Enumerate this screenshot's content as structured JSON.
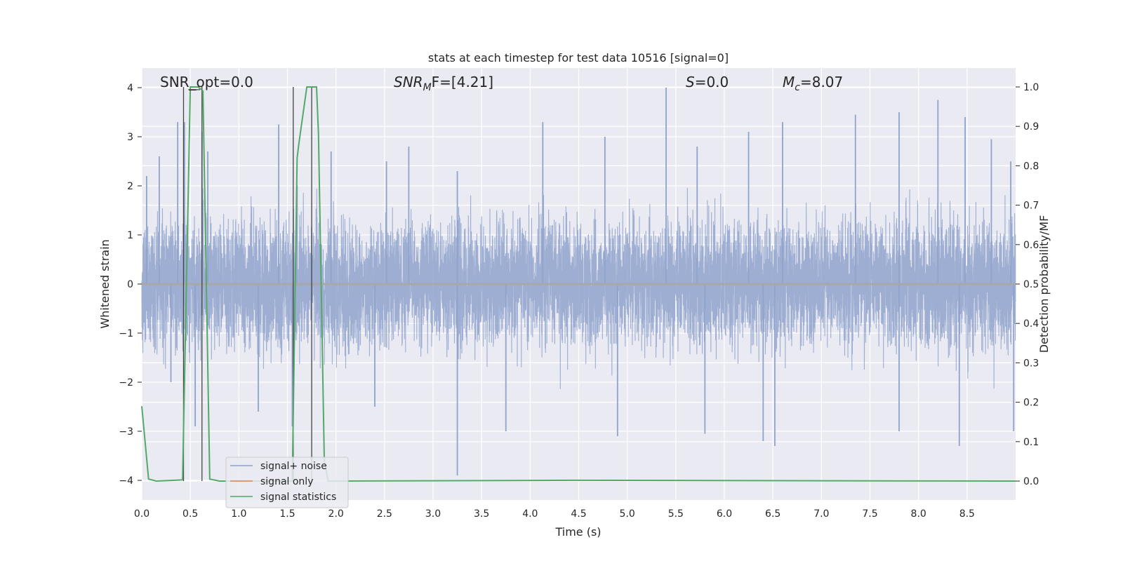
{
  "chart_data": {
    "type": "line",
    "title": "stats at each timestep for test data 10516 [signal=0]",
    "xlabel": "Time (s)",
    "ylabel": "Whitened strain",
    "y2label": "Detection probability/MF",
    "xlim": [
      0.0,
      9.0
    ],
    "ylim": [
      -4.4,
      4.4
    ],
    "y2lim": [
      -0.048,
      1.048
    ],
    "xticks": [
      "0.0",
      "0.5",
      "1.0",
      "1.5",
      "2.0",
      "2.5",
      "3.0",
      "3.5",
      "4.0",
      "4.5",
      "5.0",
      "5.5",
      "6.0",
      "6.5",
      "7.0",
      "7.5",
      "8.0",
      "8.5"
    ],
    "yticks": [
      "4",
      "3",
      "2",
      "1",
      "0",
      "−1",
      "−2",
      "−3",
      "−4"
    ],
    "y2ticks": [
      "1.0",
      "0.9",
      "0.8",
      "0.7",
      "0.6",
      "0.5",
      "0.4",
      "0.3",
      "0.2",
      "0.1",
      "0.0"
    ],
    "grid": true,
    "legend_position": "lower-left",
    "annotations": {
      "snr_opt": "SNR_opt=0.0",
      "snr_mf_base": "SNR",
      "snr_mf_sub": "M",
      "snr_mf_rest": "F=[4.21]",
      "s_symbol": "S",
      "s_value": "=0.0",
      "mc_symbol": "M",
      "mc_sub": "c",
      "mc_value": "=8.07"
    },
    "series": [
      {
        "name": "signal+ noise",
        "color": "#8fa3cc",
        "envelope_note": "dense whitened noise",
        "positive_peaks": [
          [
            0.05,
            2.2
          ],
          [
            0.18,
            2.6
          ],
          [
            0.37,
            3.3
          ],
          [
            0.44,
            3.3
          ],
          [
            0.62,
            3.1
          ],
          [
            0.68,
            2.7
          ],
          [
            1.41,
            3.25
          ],
          [
            1.6,
            2.0
          ],
          [
            1.95,
            2.7
          ],
          [
            2.52,
            2.5
          ],
          [
            2.75,
            2.8
          ],
          [
            3.25,
            2.3
          ],
          [
            4.13,
            3.3
          ],
          [
            4.77,
            3.0
          ],
          [
            5.4,
            4.0
          ],
          [
            5.72,
            2.8
          ],
          [
            6.25,
            3.1
          ],
          [
            6.6,
            3.3
          ],
          [
            7.35,
            3.45
          ],
          [
            7.8,
            3.5
          ],
          [
            8.2,
            3.75
          ],
          [
            8.48,
            3.4
          ],
          [
            8.75,
            2.95
          ],
          [
            8.95,
            2.5
          ]
        ],
        "negative_peaks": [
          [
            0.3,
            -2.0
          ],
          [
            0.55,
            -2.9
          ],
          [
            1.2,
            -2.6
          ],
          [
            1.55,
            -2.9
          ],
          [
            2.4,
            -2.5
          ],
          [
            3.25,
            -3.9
          ],
          [
            3.75,
            -3.0
          ],
          [
            4.9,
            -3.1
          ],
          [
            5.8,
            -3.05
          ],
          [
            6.4,
            -3.2
          ],
          [
            6.52,
            -3.3
          ],
          [
            7.8,
            -3.0
          ],
          [
            8.42,
            -3.3
          ],
          [
            8.98,
            -3.0
          ]
        ]
      },
      {
        "name": "signal only",
        "color": "#dd8452",
        "values_note": "flat at zero",
        "points": [
          [
            0.0,
            0.0
          ],
          [
            9.0,
            0.0
          ]
        ]
      },
      {
        "name": "signal statistics",
        "color": "#55a868",
        "points": [
          [
            0.0,
            0.19
          ],
          [
            0.07,
            0.005
          ],
          [
            0.15,
            0.0
          ],
          [
            0.42,
            0.003
          ],
          [
            0.5,
            1.0
          ],
          [
            0.58,
            1.0
          ],
          [
            0.63,
            0.99
          ],
          [
            0.7,
            0.005
          ],
          [
            0.8,
            0.0
          ],
          [
            1.55,
            0.0
          ],
          [
            1.6,
            0.82
          ],
          [
            1.62,
            0.86
          ],
          [
            1.7,
            1.0
          ],
          [
            1.8,
            1.0
          ],
          [
            1.82,
            0.88
          ],
          [
            1.88,
            0.05
          ],
          [
            1.92,
            0.0
          ],
          [
            4.45,
            0.002
          ],
          [
            9.0,
            0.0
          ]
        ]
      }
    ],
    "vertical_markers": [
      0.43,
      0.62,
      1.56,
      1.75
    ]
  }
}
